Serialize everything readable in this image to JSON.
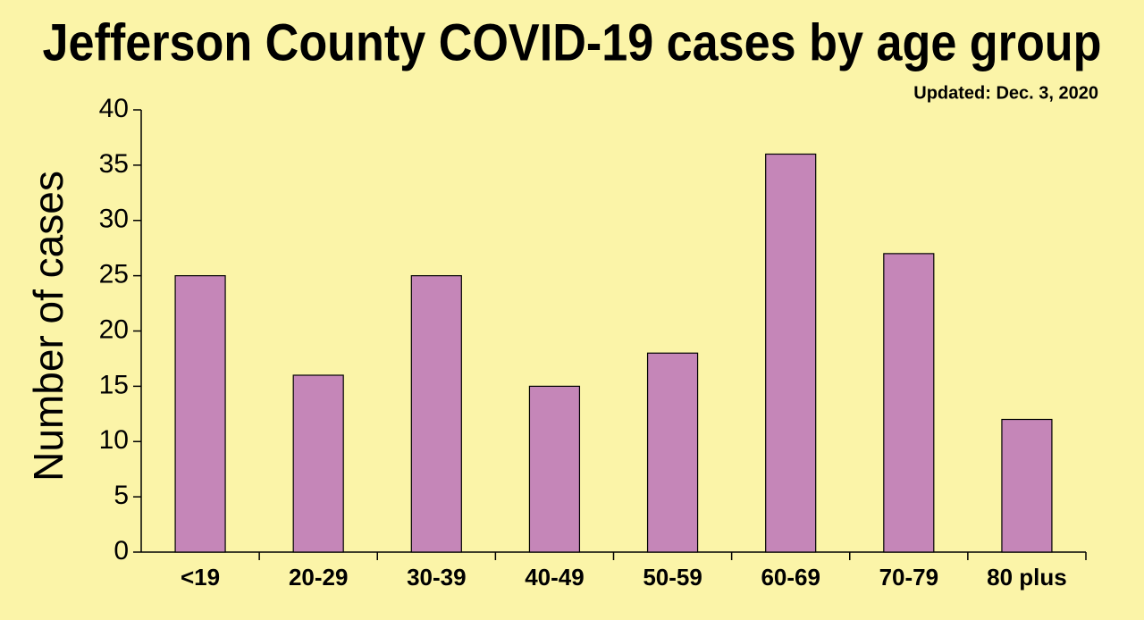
{
  "chart_data": {
    "type": "bar",
    "title": "Jefferson County COVID-19 cases by age group",
    "subtitle": "Updated: Dec. 3, 2020",
    "y_label": "Number of cases",
    "categories": [
      "<19",
      "20-29",
      "30-39",
      "40-49",
      "50-59",
      "60-69",
      "70-79",
      "80 plus"
    ],
    "values": [
      25,
      16,
      25,
      15,
      18,
      36,
      27,
      12
    ],
    "color": "#c586b8",
    "ylim": [
      0,
      40
    ],
    "yticks": [
      0,
      5,
      10,
      15,
      20,
      25,
      30,
      35,
      40
    ],
    "grid": false
  }
}
